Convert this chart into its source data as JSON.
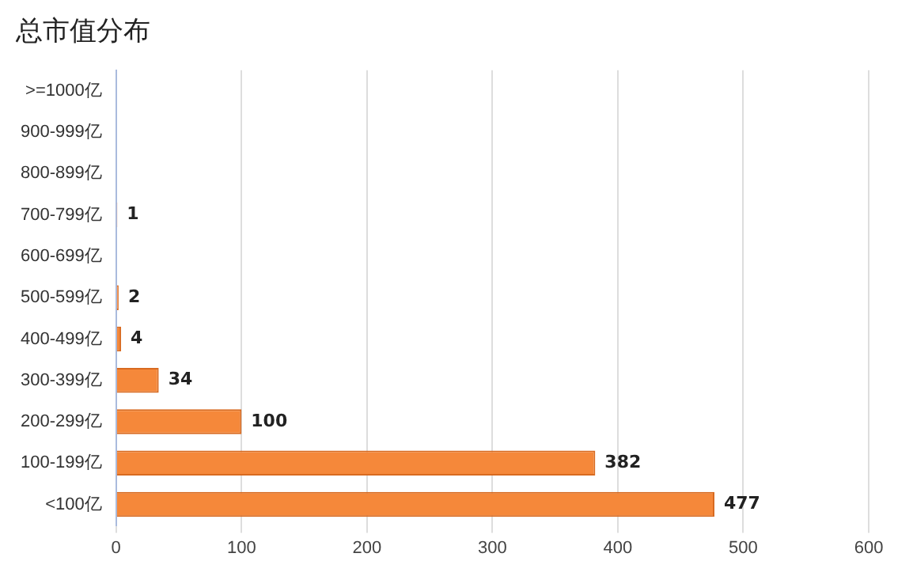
{
  "chart_data": {
    "type": "bar",
    "orientation": "horizontal",
    "title": "总市值分布",
    "categories": [
      ">=1000亿",
      "900-999亿",
      "800-899亿",
      "700-799亿",
      "600-699亿",
      "500-599亿",
      "400-499亿",
      "300-399亿",
      "200-299亿",
      "100-199亿",
      "<100亿"
    ],
    "values": [
      null,
      null,
      null,
      1,
      null,
      2,
      4,
      34,
      100,
      382,
      477
    ],
    "color": "#f5883a",
    "xlim": [
      0,
      600
    ],
    "xticks": [
      0,
      100,
      200,
      300,
      400,
      500,
      600
    ],
    "grid": "x",
    "data_labels": true,
    "legend": false
  }
}
